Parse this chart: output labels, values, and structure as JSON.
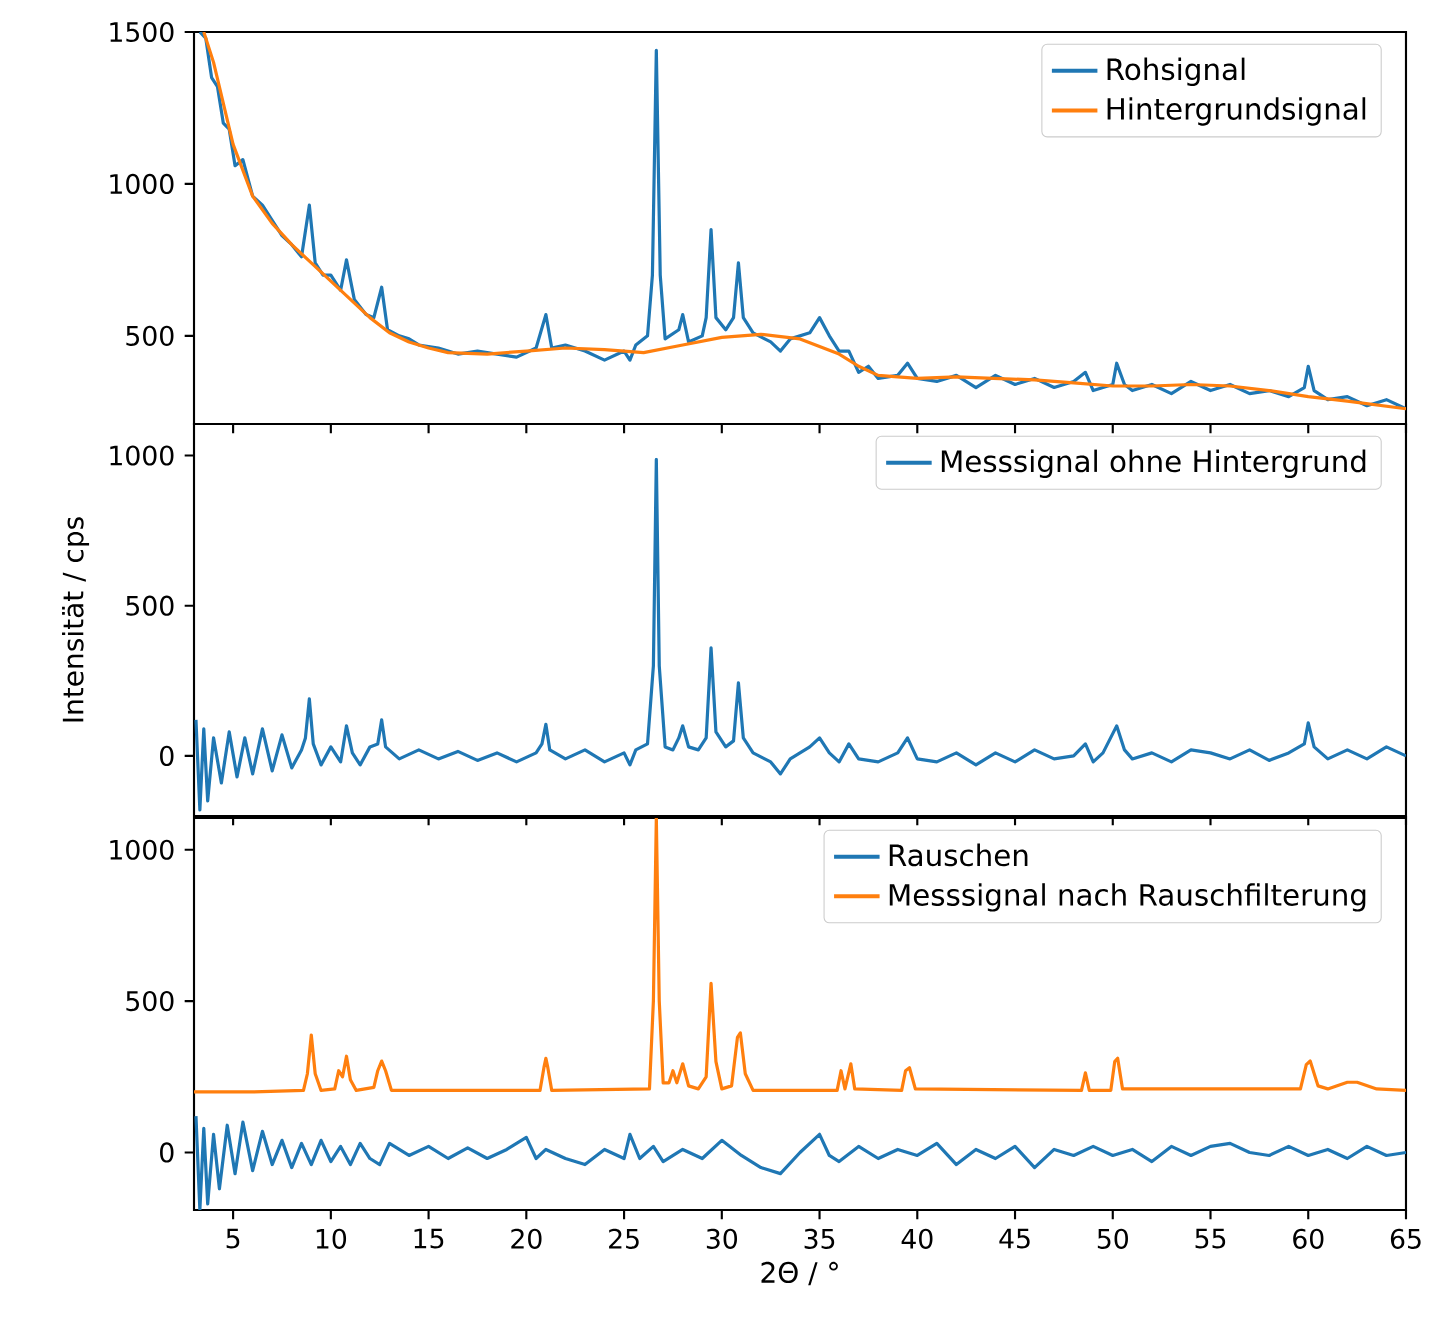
{
  "chart_data": [
    {
      "type": "line",
      "xlim": [
        3,
        65
      ],
      "ylim": [
        210,
        1500
      ],
      "xticks": [
        5,
        10,
        15,
        20,
        25,
        30,
        35,
        40,
        45,
        50,
        55,
        60,
        65
      ],
      "yticks": [
        500,
        1000,
        1500
      ],
      "tick_labels": "y",
      "legend": "top right",
      "series": [
        {
          "name": "Rohsignal",
          "color": "#1f77b4",
          "x": [
            3.3,
            3.6,
            3.9,
            4.2,
            4.5,
            4.8,
            5.1,
            5.5,
            6.0,
            6.5,
            7.0,
            7.5,
            8.0,
            8.5,
            8.9,
            9.2,
            9.6,
            10.0,
            10.5,
            10.8,
            11.2,
            11.8,
            12.2,
            12.6,
            12.9,
            13.5,
            14.0,
            14.5,
            15.5,
            16.5,
            17.5,
            18.5,
            19.5,
            20.5,
            21.0,
            21.3,
            22,
            23,
            24,
            25,
            25.3,
            25.6,
            26.2,
            26.45,
            26.65,
            26.85,
            27.1,
            27.8,
            28.0,
            28.3,
            29.0,
            29.2,
            29.45,
            29.7,
            30.2,
            30.6,
            30.85,
            31.1,
            31.6,
            32.5,
            33,
            33.5,
            34.5,
            35.0,
            35.5,
            36,
            36.5,
            37,
            37.5,
            38,
            39,
            39.5,
            40,
            41,
            42,
            43,
            44,
            45,
            46,
            47,
            48,
            48.6,
            49,
            50,
            50.2,
            50.6,
            51,
            52,
            53,
            54,
            55,
            56,
            57,
            58,
            59,
            59.8,
            60,
            60.3,
            61,
            62,
            63,
            64,
            65
          ],
          "values": [
            1500,
            1480,
            1350,
            1320,
            1200,
            1180,
            1060,
            1080,
            960,
            930,
            880,
            830,
            800,
            760,
            930,
            740,
            700,
            700,
            650,
            750,
            620,
            570,
            560,
            660,
            520,
            500,
            490,
            470,
            460,
            440,
            450,
            440,
            430,
            460,
            570,
            460,
            470,
            450,
            420,
            450,
            420,
            470,
            500,
            700,
            1440,
            700,
            490,
            520,
            570,
            480,
            500,
            560,
            850,
            560,
            520,
            560,
            740,
            560,
            510,
            480,
            450,
            490,
            510,
            560,
            500,
            450,
            450,
            380,
            400,
            360,
            370,
            410,
            360,
            350,
            370,
            330,
            370,
            340,
            360,
            330,
            350,
            380,
            320,
            340,
            410,
            340,
            320,
            340,
            310,
            350,
            320,
            340,
            310,
            320,
            300,
            330,
            400,
            320,
            290,
            300,
            270,
            290,
            260
          ]
        },
        {
          "name": "Hintergrundsignal",
          "color": "#ff7f0e",
          "x": [
            3.5,
            4,
            5,
            6,
            7,
            8,
            9,
            10,
            11,
            12,
            13,
            14,
            15,
            16,
            18,
            20,
            22,
            24,
            26,
            28,
            30,
            32,
            34,
            36,
            37,
            38,
            40,
            42,
            44,
            46,
            48,
            50,
            52,
            54,
            56,
            58,
            60,
            62,
            65
          ],
          "values": [
            1500,
            1400,
            1130,
            960,
            870,
            800,
            740,
            680,
            620,
            560,
            510,
            480,
            460,
            445,
            440,
            450,
            460,
            455,
            445,
            470,
            495,
            505,
            490,
            440,
            400,
            370,
            360,
            365,
            360,
            355,
            345,
            335,
            335,
            340,
            335,
            320,
            300,
            285,
            260
          ]
        }
      ]
    },
    {
      "type": "line",
      "xlim": [
        3,
        65
      ],
      "ylim": [
        -200,
        1105
      ],
      "xticks": [
        5,
        10,
        15,
        20,
        25,
        30,
        35,
        40,
        45,
        50,
        55,
        60,
        65
      ],
      "yticks": [
        0,
        500,
        1000
      ],
      "tick_labels": "y",
      "legend": "top right",
      "ylabel": "Intensität / cps",
      "series": [
        {
          "name": "Messsignal ohne Hintergrund",
          "color": "#1f77b4",
          "x": [
            3.1,
            3.3,
            3.5,
            3.7,
            4.0,
            4.4,
            4.8,
            5.2,
            5.6,
            6.0,
            6.5,
            7.0,
            7.5,
            8.0,
            8.5,
            8.7,
            8.9,
            9.1,
            9.5,
            10.0,
            10.5,
            10.8,
            11.1,
            11.5,
            12.0,
            12.4,
            12.6,
            12.8,
            13.5,
            14.5,
            15.5,
            16.5,
            17.5,
            18.5,
            19.5,
            20.5,
            20.8,
            21.0,
            21.2,
            22,
            23,
            24,
            25,
            25.3,
            25.6,
            26.2,
            26.5,
            26.65,
            26.8,
            27.1,
            27.5,
            27.8,
            28.0,
            28.3,
            28.8,
            29.2,
            29.45,
            29.7,
            30.2,
            30.6,
            30.85,
            31.1,
            31.6,
            32.5,
            33.0,
            33.5,
            34.5,
            35.0,
            35.5,
            36.0,
            36.5,
            37.0,
            38,
            39,
            39.5,
            40,
            41,
            42,
            43,
            44,
            45,
            46,
            47,
            48,
            48.6,
            49,
            49.5,
            50.2,
            50.6,
            51,
            52,
            53,
            54,
            55,
            56,
            57,
            58,
            59,
            59.8,
            60,
            60.3,
            61,
            62,
            63,
            64,
            65
          ],
          "values": [
            120,
            -180,
            90,
            -150,
            60,
            -90,
            80,
            -70,
            60,
            -60,
            90,
            -50,
            70,
            -40,
            20,
            60,
            190,
            40,
            -30,
            30,
            -20,
            100,
            10,
            -30,
            30,
            40,
            120,
            30,
            -10,
            20,
            -10,
            15,
            -15,
            10,
            -20,
            10,
            40,
            105,
            20,
            -10,
            20,
            -20,
            10,
            -30,
            20,
            40,
            300,
            987,
            300,
            30,
            20,
            60,
            100,
            30,
            20,
            60,
            360,
            80,
            30,
            50,
            243,
            60,
            10,
            -20,
            -60,
            -10,
            30,
            60,
            10,
            -20,
            40,
            -10,
            -20,
            10,
            60,
            -10,
            -20,
            10,
            -30,
            10,
            -20,
            20,
            -10,
            0,
            40,
            -20,
            10,
            100,
            20,
            -10,
            10,
            -20,
            20,
            10,
            -10,
            20,
            -15,
            10,
            40,
            110,
            30,
            -10,
            20,
            -10,
            30,
            0
          ]
        }
      ]
    },
    {
      "type": "line",
      "xlim": [
        3,
        65
      ],
      "ylim": [
        -190,
        1105
      ],
      "xticks": [
        5,
        10,
        15,
        20,
        25,
        30,
        35,
        40,
        45,
        50,
        55,
        60,
        65
      ],
      "yticks": [
        0,
        500,
        1000
      ],
      "legend": "top right",
      "xlabel": "2Θ / °",
      "series": [
        {
          "name": "Rauschen",
          "color": "#1f77b4",
          "x": [
            3.1,
            3.3,
            3.5,
            3.7,
            4.0,
            4.3,
            4.7,
            5.1,
            5.5,
            6.0,
            6.5,
            7.0,
            7.5,
            8.0,
            8.5,
            9.0,
            9.5,
            10,
            10.5,
            11,
            11.5,
            12,
            12.5,
            13,
            14,
            15,
            16,
            17,
            18,
            19,
            20,
            20.5,
            21,
            22,
            23,
            24,
            25,
            25.3,
            25.8,
            26.5,
            27,
            28,
            29,
            30,
            31,
            32,
            33,
            34,
            35,
            35.5,
            36,
            37,
            38,
            39,
            40,
            41,
            42,
            43,
            44,
            45,
            46,
            47,
            48,
            49,
            50,
            51,
            52,
            53,
            54,
            55,
            56,
            57,
            58,
            59,
            60,
            61,
            62,
            63,
            64,
            65
          ],
          "values": [
            120,
            -190,
            80,
            -170,
            60,
            -120,
            90,
            -70,
            100,
            -60,
            70,
            -40,
            40,
            -50,
            30,
            -40,
            40,
            -30,
            20,
            -40,
            30,
            -20,
            -40,
            30,
            -10,
            20,
            -20,
            15,
            -20,
            10,
            50,
            -20,
            10,
            -20,
            -40,
            10,
            -20,
            60,
            -20,
            20,
            -30,
            10,
            -20,
            40,
            -10,
            -50,
            -70,
            0,
            60,
            -10,
            -30,
            20,
            -20,
            10,
            -10,
            30,
            -40,
            10,
            -20,
            20,
            -50,
            10,
            -10,
            20,
            -10,
            10,
            -30,
            20,
            -10,
            20,
            30,
            0,
            -10,
            20,
            -10,
            10,
            -20,
            20,
            -10,
            0
          ]
        },
        {
          "name": "Messsignal nach Rauschfilterung",
          "color": "#ff7f0e",
          "x": [
            3,
            6,
            8.6,
            8.8,
            9.0,
            9.2,
            9.5,
            10.2,
            10.4,
            10.6,
            10.8,
            11.0,
            11.3,
            12.2,
            12.4,
            12.6,
            12.8,
            13.1,
            20.7,
            20.9,
            21.0,
            21.1,
            21.3,
            26.3,
            26.5,
            26.65,
            26.8,
            27.0,
            27.3,
            27.5,
            27.7,
            28.0,
            28.3,
            28.8,
            29.2,
            29.45,
            29.7,
            30.0,
            30.5,
            30.8,
            30.95,
            31.2,
            31.6,
            35.9,
            36.1,
            36.3,
            36.6,
            36.8,
            39.2,
            39.4,
            39.6,
            39.9,
            48.4,
            48.6,
            48.8,
            49.9,
            50.1,
            50.25,
            50.5,
            59.6,
            59.9,
            60.1,
            60.5,
            61.0,
            62.0,
            62.5,
            63.5,
            65
          ],
          "values": [
            200,
            200,
            205,
            260,
            388,
            260,
            205,
            210,
            270,
            250,
            318,
            240,
            205,
            215,
            270,
            302,
            270,
            205,
            205,
            280,
            311,
            280,
            205,
            210,
            500,
            1105,
            500,
            230,
            230,
            270,
            230,
            293,
            220,
            210,
            250,
            559,
            300,
            210,
            220,
            380,
            395,
            260,
            205,
            205,
            270,
            210,
            293,
            210,
            205,
            270,
            280,
            210,
            205,
            263,
            205,
            205,
            300,
            311,
            210,
            210,
            290,
            302,
            220,
            210,
            232,
            232,
            210,
            205
          ]
        }
      ]
    }
  ]
}
